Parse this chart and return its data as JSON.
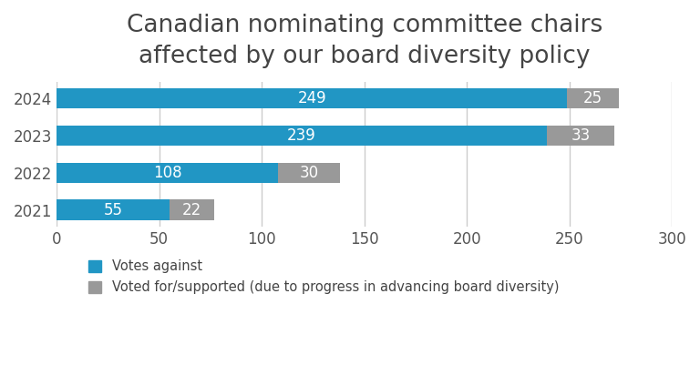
{
  "title": "Canadian nominating committee chairs\naffected by our board diversity policy",
  "title_fontsize": 19,
  "years": [
    "2024",
    "2023",
    "2022",
    "2021"
  ],
  "votes_against": [
    249,
    239,
    108,
    55
  ],
  "votes_for": [
    25,
    33,
    30,
    22
  ],
  "color_against": "#2196C4",
  "color_for": "#999999",
  "xlim": [
    0,
    300
  ],
  "xticks": [
    0,
    50,
    100,
    150,
    200,
    250,
    300
  ],
  "legend_against": "Votes against",
  "legend_for": "Voted for/supported (due to progress in advancing board diversity)",
  "bar_height": 0.55,
  "label_fontsize": 12,
  "tick_fontsize": 12,
  "background_color": "#ffffff",
  "grid_color": "#cccccc"
}
